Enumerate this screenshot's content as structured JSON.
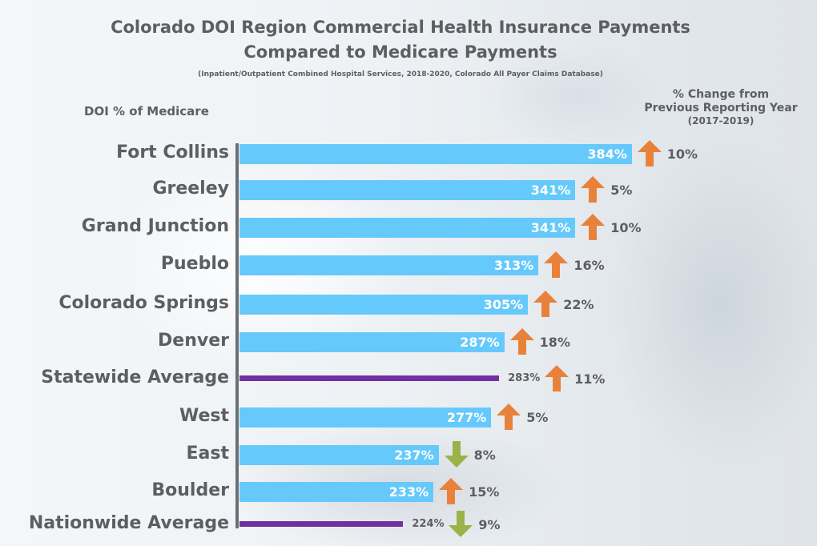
{
  "colors": {
    "bar": "#66c9fb",
    "average_line": "#7030a0",
    "arrow_up": "#e8823a",
    "arrow_down": "#9bb248",
    "text": "#5d5e62"
  },
  "chart_data": {
    "type": "bar",
    "orientation": "horizontal",
    "title": "Colorado DOI Region Commercial Health Insurance Payments",
    "title_line2": "Compared to Medicare Payments",
    "subtitle": "(Inpatient/Outpatient Combined Hospital Services, 2018-2020, Colorado All Payer Claims Database)",
    "ylabel": "DOI  % of Medicare",
    "change_header": "% Change from",
    "change_header_line2": "Previous Reporting Year",
    "change_header_line3": "(2017-2019)",
    "unit": "% of Medicare",
    "categories": [
      "Fort Collins",
      "Greeley",
      "Grand Junction",
      "Pueblo",
      "Colorado Springs",
      "Denver",
      "Statewide Average",
      "West",
      "East",
      "Boulder",
      "Nationwide Average"
    ],
    "values": [
      384,
      341,
      341,
      313,
      305,
      287,
      283,
      277,
      237,
      233,
      224
    ],
    "value_labels": [
      "384%",
      "341%",
      "341%",
      "313%",
      "305%",
      "287%",
      "283%",
      "277%",
      "237%",
      "233%",
      "224%"
    ],
    "kind": [
      "bar",
      "bar",
      "bar",
      "bar",
      "bar",
      "bar",
      "average",
      "bar",
      "bar",
      "bar",
      "average"
    ],
    "change": [
      {
        "direction": "up",
        "label": "10%",
        "icon": "arrow-up-icon"
      },
      {
        "direction": "up",
        "label": "5%",
        "icon": "arrow-up-icon"
      },
      {
        "direction": "up",
        "label": "10%",
        "icon": "arrow-up-icon"
      },
      {
        "direction": "up",
        "label": "16%",
        "icon": "arrow-up-icon"
      },
      {
        "direction": "up",
        "label": "22%",
        "icon": "arrow-up-icon"
      },
      {
        "direction": "up",
        "label": "18%",
        "icon": "arrow-up-icon"
      },
      {
        "direction": "up",
        "label": "11%",
        "icon": "arrow-up-icon"
      },
      {
        "direction": "up",
        "label": "5%",
        "icon": "arrow-up-icon"
      },
      {
        "direction": "down",
        "label": "8%",
        "icon": "arrow-down-icon"
      },
      {
        "direction": "up",
        "label": "15%",
        "icon": "arrow-up-icon"
      },
      {
        "direction": "down",
        "label": "9%",
        "icon": "arrow-down-icon"
      }
    ]
  }
}
